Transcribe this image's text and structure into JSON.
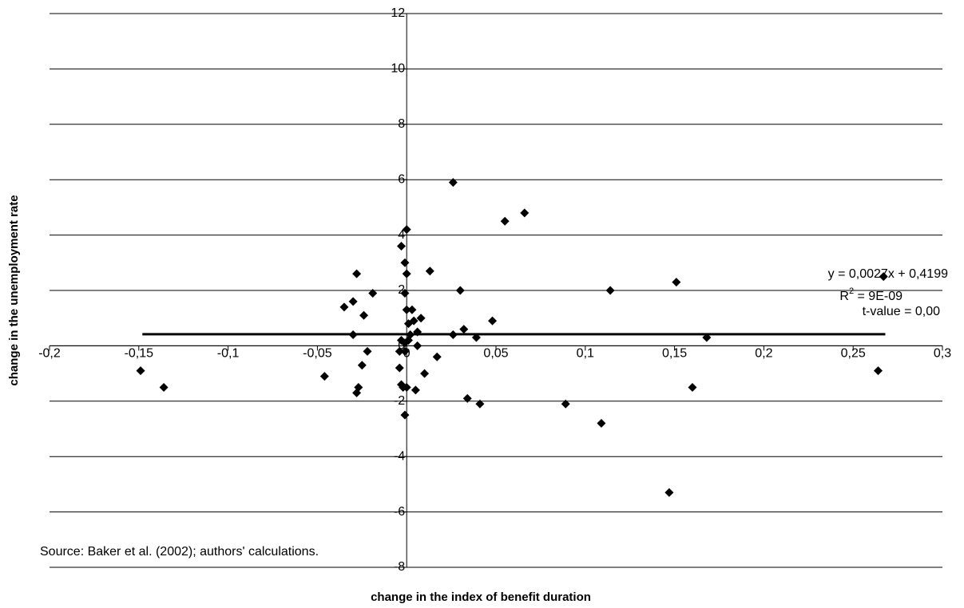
{
  "chart_data": {
    "type": "scatter",
    "x_label": "change in the index of benefit duration",
    "y_label": "change in the unemployment rate",
    "xlim": [
      -0.2,
      0.3
    ],
    "ylim": [
      -8,
      12
    ],
    "xticks": [
      {
        "value": -0.2,
        "label": "-0,2"
      },
      {
        "value": -0.15,
        "label": "-0,15"
      },
      {
        "value": -0.1,
        "label": "-0,1"
      },
      {
        "value": -0.05,
        "label": "-0,05"
      },
      0,
      {
        "value": 0.05,
        "label": "0,05"
      },
      {
        "value": 0.1,
        "label": "0,1"
      },
      {
        "value": 0.15,
        "label": "0,15"
      },
      {
        "value": 0.2,
        "label": "0,2"
      },
      {
        "value": 0.25,
        "label": "0,25"
      },
      {
        "value": 0.3,
        "label": "0,3"
      }
    ],
    "yticks": [
      -8,
      -6,
      -4,
      -2,
      0,
      2,
      4,
      6,
      8,
      10,
      12
    ],
    "grid": true,
    "series": [
      {
        "color": "#000000",
        "x": [
          -0.149,
          -0.136,
          -0.046,
          -0.035,
          -0.03,
          -0.028,
          -0.03,
          -0.028,
          -0.027,
          -0.025,
          -0.024,
          -0.022,
          -0.019,
          -0.004,
          -0.004,
          -0.003,
          -0.003,
          -0.003,
          -0.002,
          -0.001,
          -0.001,
          -0.001,
          -0.001,
          0,
          0,
          -0.001,
          0,
          0.001,
          0,
          0.001,
          0.002,
          0.003,
          0.004,
          0.005,
          0.006,
          0.006,
          0.008,
          0.01,
          0.013,
          0.017,
          0.026,
          0.026,
          0.03,
          0.032,
          0.034,
          0.039,
          0.041,
          0.048,
          0.055,
          0.066,
          0.089,
          0.109,
          0.114,
          0.147,
          0.151,
          0.16,
          0.168,
          0.264,
          0.267
        ],
        "values": [
          -0.9,
          -1.5,
          -1.1,
          1.4,
          1.6,
          2.6,
          0.4,
          -1.7,
          -1.5,
          -0.7,
          1.1,
          -0.2,
          1.9,
          -0.8,
          -0.2,
          3.6,
          0.2,
          -1.4,
          -1.5,
          0.1,
          -0.2,
          1.9,
          3.0,
          2.6,
          4.2,
          -2.5,
          1.3,
          0.8,
          -1.5,
          0.2,
          0.4,
          1.3,
          0.9,
          -1.6,
          0.5,
          0,
          1.0,
          -1.0,
          2.7,
          -0.4,
          5.9,
          0.4,
          2.0,
          0.6,
          -1.9,
          0.3,
          -2.1,
          0.9,
          4.5,
          4.8,
          -2.1,
          -2.8,
          2.0,
          -5.3,
          2.3,
          -1.5,
          0.3,
          -0.9,
          2.5
        ]
      }
    ],
    "trendline": {
      "color": "#000000",
      "x": [
        -0.148,
        0.268
      ],
      "values": [
        0.42,
        0.42
      ]
    },
    "equation": "y = 0,0027x + 0,4199",
    "r_squared": {
      "symbol": "R",
      "power": "2",
      "text": " = 9E-09"
    },
    "t_value": "t-value = 0,00",
    "source": "Source: Baker et al. (2002); authors' calculations."
  }
}
